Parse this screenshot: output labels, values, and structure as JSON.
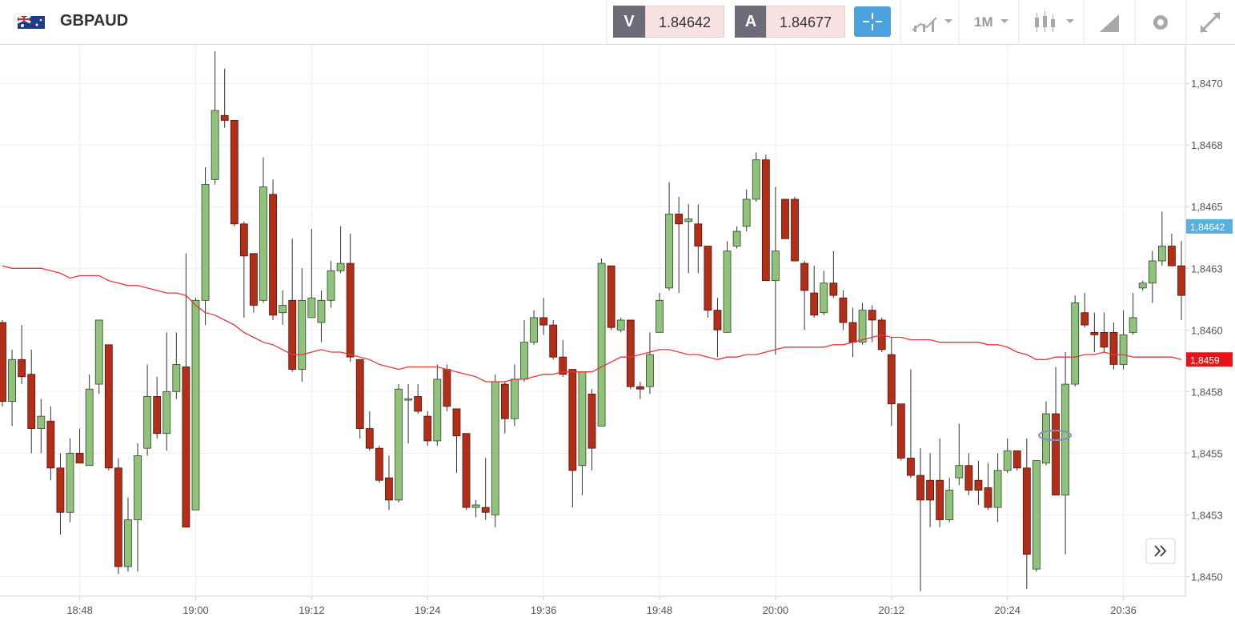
{
  "header": {
    "symbol": "GBPAUD",
    "bid_label": "V",
    "bid": "1.84642",
    "ask_label": "A",
    "ask": "1.84677",
    "timeframe": "1M"
  },
  "chart_data": {
    "type": "candlestick",
    "categories": [
      null,
      null,
      null,
      null,
      null,
      null,
      null,
      null,
      "18:48",
      null,
      null,
      null,
      null,
      null,
      null,
      null,
      null,
      null,
      null,
      null,
      "19:00",
      null,
      null,
      null,
      null,
      null,
      null,
      null,
      null,
      null,
      null,
      null,
      "19:12",
      null,
      null,
      null,
      null,
      null,
      null,
      null,
      null,
      null,
      null,
      null,
      "19:24",
      null,
      null,
      null,
      null,
      null,
      null,
      null,
      null,
      null,
      null,
      null,
      "19:36",
      null,
      null,
      null,
      null,
      null,
      null,
      null,
      null,
      null,
      null,
      null,
      "19:48",
      null,
      null,
      null,
      null,
      null,
      null,
      null,
      null,
      null,
      null,
      null,
      "20:00",
      null,
      null,
      null,
      null,
      null,
      null,
      null,
      null,
      null,
      null,
      null,
      "20:12",
      null,
      null,
      null,
      null,
      null,
      null,
      null,
      null,
      null,
      null,
      null,
      "20:24",
      null,
      null,
      null,
      null,
      null,
      null,
      null,
      null,
      null,
      null,
      null,
      "20:36",
      null,
      null,
      null,
      null,
      null,
      null
    ],
    "open": [
      1.84603,
      1.84571,
      1.84588,
      1.84582,
      1.8456,
      1.84563,
      1.84544,
      1.84526,
      1.8455,
      1.84545,
      1.84578,
      1.84594,
      1.84544,
      1.84504,
      1.84523,
      1.84552,
      1.84573,
      1.84558,
      1.84575,
      1.84585,
      1.84527,
      1.84612,
      1.84661,
      1.84687,
      1.84685,
      1.84643,
      1.84631,
      1.84612,
      1.84655,
      1.84607,
      1.84612,
      1.84584,
      1.84605,
      1.84603,
      1.84612,
      1.84624,
      1.84627,
      1.84588,
      1.8456,
      1.84552,
      1.8454,
      1.84531,
      1.84572,
      1.84573,
      1.84565,
      1.84555,
      1.84584,
      1.84568,
      1.84558,
      1.84528,
      1.84528,
      1.84525,
      1.84578,
      1.84564,
      1.8458,
      1.84595,
      1.84605,
      1.84602,
      1.84589,
      1.84584,
      1.84545,
      1.84574,
      1.84561,
      1.84626,
      1.846,
      1.84604,
      1.84577,
      1.84577,
      1.84599,
      1.84617,
      1.84647,
      1.84644,
      1.84643,
      1.84634,
      1.84608,
      1.84599,
      1.84634,
      1.84642,
      1.84653,
      1.84669,
      1.8462,
      1.84653,
      1.84653,
      1.84627,
      1.84615,
      1.84607,
      1.84619,
      1.84613,
      1.84603,
      1.84595,
      1.84608,
      1.84604,
      1.8459,
      1.8457,
      1.84548,
      1.84541,
      1.84539,
      1.84539,
      1.84523,
      1.8454,
      1.84545,
      1.84539,
      1.84536,
      1.84528,
      1.84543,
      1.84551,
      1.84544,
      1.84503,
      1.84546,
      1.84566,
      1.84533,
      1.84578,
      1.84607,
      1.84599,
      1.84599,
      1.84599,
      1.84586,
      1.84599,
      1.84617,
      1.84619,
      1.84628,
      1.84634,
      1.84626
    ],
    "high": [
      1.84604,
      1.84592,
      1.84602,
      1.84592,
      1.84572,
      1.84569,
      1.8455,
      1.84556,
      1.8456,
      1.84582,
      1.84604,
      1.84594,
      1.84548,
      1.84532,
      1.84554,
      1.84586,
      1.84581,
      1.84599,
      1.84599,
      1.84631,
      1.84613,
      1.84666,
      1.84713,
      1.84706,
      1.84685,
      1.84644,
      1.84631,
      1.8467,
      1.84661,
      1.84616,
      1.84637,
      1.84625,
      1.84641,
      1.84616,
      1.84628,
      1.84642,
      1.84639,
      1.84588,
      1.84567,
      1.84553,
      1.84549,
      1.84578,
      1.84578,
      1.84578,
      1.84567,
      1.84586,
      1.84586,
      1.84568,
      1.84558,
      1.84531,
      1.84548,
      1.84582,
      1.84579,
      1.84586,
      1.84604,
      1.84608,
      1.84613,
      1.84604,
      1.84596,
      1.84584,
      1.84583,
      1.84576,
      1.84629,
      1.84626,
      1.84605,
      1.84604,
      1.84579,
      1.84599,
      1.84615,
      1.8466,
      1.84654,
      1.84651,
      1.84651,
      1.84634,
      1.84613,
      1.84636,
      1.84642,
      1.84657,
      1.84672,
      1.84671,
      1.84658,
      1.84653,
      1.84654,
      1.84628,
      1.84626,
      1.84624,
      1.84632,
      1.84616,
      1.84609,
      1.84611,
      1.8461,
      1.84605,
      1.84597,
      1.8457,
      1.84584,
      1.84552,
      1.8455,
      1.84556,
      1.8454,
      1.84562,
      1.8455,
      1.84547,
      1.84546,
      1.8455,
      1.84556,
      1.84551,
      1.84556,
      1.84547,
      1.84571,
      1.84585,
      1.84591,
      1.84614,
      1.84615,
      1.84607,
      1.84607,
      1.84603,
      1.84608,
      1.84615,
      1.8462,
      1.84632,
      1.84648,
      1.84639,
      1.84636
    ],
    "low": [
      1.84569,
      1.84561,
      1.84578,
      1.8455,
      1.8455,
      1.84539,
      1.84517,
      1.84522,
      1.84546,
      1.84545,
      1.84574,
      1.84543,
      1.84501,
      1.84502,
      1.84502,
      1.84549,
      1.84556,
      1.84551,
      1.84572,
      1.8452,
      1.84527,
      1.84602,
      1.84659,
      1.84682,
      1.84642,
      1.84605,
      1.84607,
      1.84611,
      1.84604,
      1.84602,
      1.84583,
      1.84579,
      1.84605,
      1.84595,
      1.84609,
      1.84623,
      1.84587,
      1.84556,
      1.84551,
      1.84538,
      1.84527,
      1.8453,
      1.84554,
      1.84566,
      1.84553,
      1.84553,
      1.84567,
      1.84542,
      1.84527,
      1.84524,
      1.84523,
      1.8452,
      1.84558,
      1.84561,
      1.84579,
      1.84594,
      1.84598,
      1.84588,
      1.84581,
      1.84528,
      1.84533,
      1.84543,
      1.84561,
      1.846,
      1.84599,
      1.84576,
      1.84572,
      1.84574,
      1.84599,
      1.84616,
      1.84615,
      1.84623,
      1.84623,
      1.84605,
      1.84589,
      1.84599,
      1.84633,
      1.8464,
      1.84652,
      1.8462,
      1.8459,
      1.84637,
      1.84628,
      1.846,
      1.84605,
      1.84606,
      1.84613,
      1.846,
      1.84589,
      1.84594,
      1.84595,
      1.84591,
      1.84561,
      1.84547,
      1.8454,
      1.84494,
      1.8452,
      1.8452,
      1.84522,
      1.84537,
      1.84533,
      1.84529,
      1.84527,
      1.84522,
      1.84542,
      1.84543,
      1.84495,
      1.84502,
      1.84545,
      1.84533,
      1.84509,
      1.84577,
      1.84601,
      1.84591,
      1.84591,
      1.84584,
      1.84584,
      1.84598,
      1.84616,
      1.84611,
      1.84626,
      1.84626,
      1.84604
    ],
    "close": [
      1.84571,
      1.84588,
      1.84581,
      1.8456,
      1.84565,
      1.84544,
      1.84526,
      1.8455,
      1.84546,
      1.84576,
      1.84604,
      1.84544,
      1.84504,
      1.84523,
      1.84549,
      1.84573,
      1.84558,
      1.84575,
      1.84586,
      1.8452,
      1.84612,
      1.84659,
      1.84689,
      1.84685,
      1.84643,
      1.8463,
      1.8461,
      1.84658,
      1.84606,
      1.8461,
      1.84584,
      1.84612,
      1.84613,
      1.84612,
      1.84624,
      1.84627,
      1.84589,
      1.8456,
      1.84552,
      1.84539,
      1.84531,
      1.84576,
      1.84572,
      1.84567,
      1.84555,
      1.8458,
      1.84569,
      1.84557,
      1.84528,
      1.84529,
      1.84526,
      1.84579,
      1.84564,
      1.8458,
      1.84595,
      1.84605,
      1.84602,
      1.84589,
      1.84582,
      1.84543,
      1.84583,
      1.84552,
      1.84627,
      1.84601,
      1.84604,
      1.84577,
      1.84576,
      1.8459,
      1.84612,
      1.84647,
      1.84643,
      1.84645,
      1.84634,
      1.84608,
      1.846,
      1.84632,
      1.8464,
      1.84653,
      1.84669,
      1.8462,
      1.84632,
      1.84637,
      1.84628,
      1.84616,
      1.84606,
      1.84619,
      1.84614,
      1.84603,
      1.84595,
      1.84608,
      1.84604,
      1.84592,
      1.8457,
      1.84548,
      1.84541,
      1.84531,
      1.84531,
      1.84523,
      1.84535,
      1.84545,
      1.84535,
      1.84535,
      1.84528,
      1.84543,
      1.84551,
      1.84544,
      1.84509,
      1.84547,
      1.84566,
      1.84533,
      1.84578,
      1.84611,
      1.84602,
      1.84598,
      1.84593,
      1.84586,
      1.84598,
      1.84605,
      1.84619,
      1.84628,
      1.84634,
      1.84626,
      1.84614
    ],
    "up_color": "#8fc27b",
    "down_color": "#b32e19",
    "ma": {
      "color": "#e2383c",
      "values": [
        1.84626,
        1.84625,
        1.84625,
        1.84625,
        1.84625,
        1.84624,
        1.84623,
        1.84621,
        1.84622,
        1.84622,
        1.84622,
        1.8462,
        1.84619,
        1.84618,
        1.84618,
        1.84617,
        1.84616,
        1.84615,
        1.84615,
        1.84614,
        1.8461,
        1.84607,
        1.84606,
        1.84604,
        1.84602,
        1.84599,
        1.84597,
        1.84595,
        1.84594,
        1.84592,
        1.8459,
        1.8459,
        1.84591,
        1.84592,
        1.84591,
        1.84591,
        1.8459,
        1.84589,
        1.84588,
        1.84586,
        1.84585,
        1.84584,
        1.84585,
        1.84585,
        1.84585,
        1.84585,
        1.84584,
        1.84583,
        1.84582,
        1.84581,
        1.84579,
        1.84579,
        1.84579,
        1.8458,
        1.8458,
        1.84581,
        1.84582,
        1.84582,
        1.84583,
        1.84583,
        1.84583,
        1.84583,
        1.84585,
        1.84587,
        1.84589,
        1.84589,
        1.8459,
        1.84591,
        1.84592,
        1.84592,
        1.84591,
        1.8459,
        1.8459,
        1.84589,
        1.84588,
        1.84589,
        1.84589,
        1.8459,
        1.8459,
        1.84591,
        1.84592,
        1.84593,
        1.84593,
        1.84593,
        1.84593,
        1.84593,
        1.84594,
        1.84594,
        1.84595,
        1.84596,
        1.84597,
        1.84598,
        1.84597,
        1.84597,
        1.84596,
        1.84596,
        1.84596,
        1.84595,
        1.84595,
        1.84595,
        1.84595,
        1.84595,
        1.84594,
        1.84594,
        1.84593,
        1.84591,
        1.8459,
        1.84588,
        1.84588,
        1.84589,
        1.84589,
        1.84589,
        1.8459,
        1.8459,
        1.84591,
        1.8459,
        1.8459,
        1.84589,
        1.84589,
        1.84589,
        1.84589,
        1.84589,
        1.84588
      ]
    },
    "ylim": [
      1.84492,
      1.84715
    ],
    "yticks": [
      {
        "value": 1.845,
        "label": "1,8450"
      },
      {
        "value": 1.84525,
        "label": "1,8453"
      },
      {
        "value": 1.8455,
        "label": "1,8455"
      },
      {
        "value": 1.84575,
        "label": "1,8458"
      },
      {
        "value": 1.846,
        "label": "1,8460"
      },
      {
        "value": 1.84625,
        "label": "1,8463"
      },
      {
        "value": 1.8465,
        "label": "1,8465"
      },
      {
        "value": 1.84675,
        "label": "1,8468"
      },
      {
        "value": 1.847,
        "label": "1,8470"
      }
    ],
    "grid": true,
    "markers": [
      {
        "value": 1.84642,
        "label": "1,84642",
        "color": "#5aaee0"
      },
      {
        "value": 1.84588,
        "label": "1,8459",
        "color": "#e8141b"
      }
    ]
  }
}
